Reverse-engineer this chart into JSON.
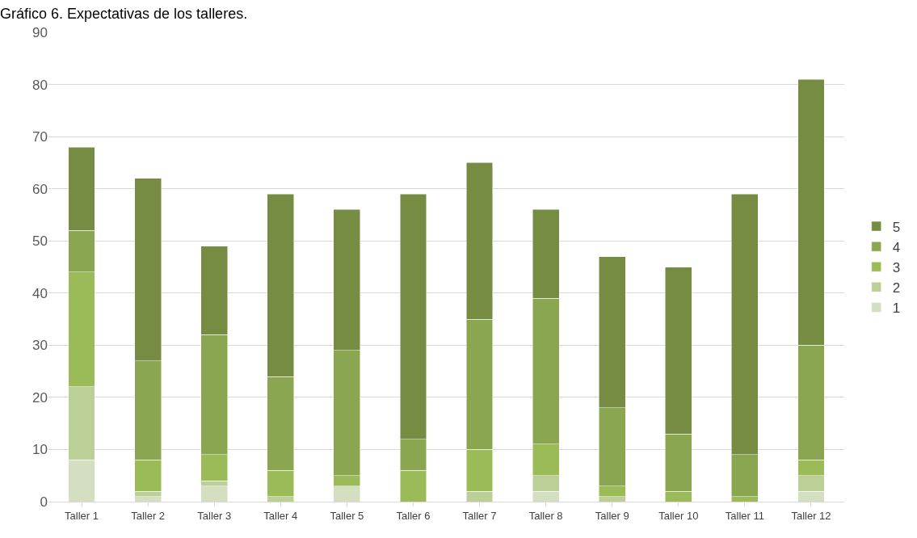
{
  "chart_data": {
    "type": "bar",
    "stacked": true,
    "title": "Gráfico 6. Expectativas de los talleres.",
    "categories": [
      "Taller 1",
      "Taller 2",
      "Taller 3",
      "Taller 4",
      "Taller 5",
      "Taller 6",
      "Taller 7",
      "Taller 8",
      "Taller 9",
      "Taller 10",
      "Taller 11",
      "Taller 12"
    ],
    "series": [
      {
        "name": "1",
        "color": "#d3dfc0",
        "values": [
          8,
          1,
          3,
          0,
          3,
          0,
          0,
          2,
          0,
          0,
          0,
          2
        ]
      },
      {
        "name": "2",
        "color": "#bccf97",
        "values": [
          14,
          1,
          1,
          1,
          0,
          0,
          2,
          3,
          1,
          0,
          0,
          3
        ]
      },
      {
        "name": "3",
        "color": "#9bbb59",
        "values": [
          22,
          6,
          5,
          5,
          2,
          6,
          8,
          6,
          2,
          2,
          1,
          3
        ]
      },
      {
        "name": "4",
        "color": "#8aa650",
        "values": [
          8,
          19,
          23,
          18,
          24,
          6,
          25,
          28,
          15,
          11,
          8,
          22
        ]
      },
      {
        "name": "5",
        "color": "#758c42",
        "values": [
          16,
          35,
          17,
          35,
          27,
          47,
          30,
          17,
          29,
          32,
          50,
          51
        ]
      }
    ],
    "ylim": [
      0,
      90
    ],
    "yticks": [
      0,
      10,
      20,
      30,
      40,
      50,
      60,
      70,
      80,
      90
    ],
    "grid": "y",
    "legend": "right"
  }
}
